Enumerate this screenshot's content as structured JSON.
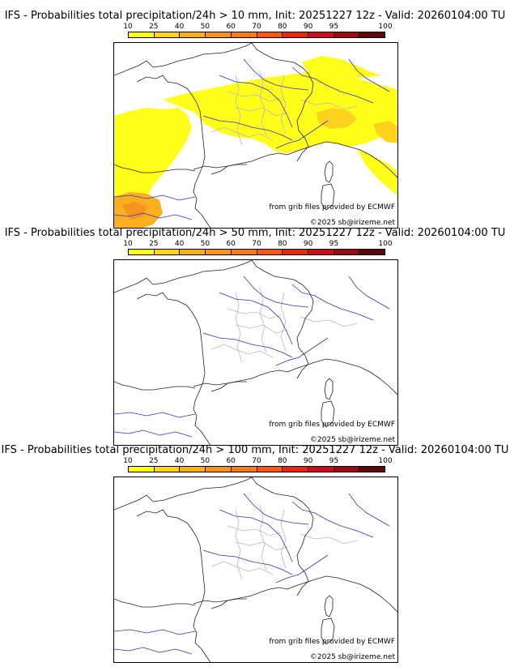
{
  "legend": {
    "ticks": [
      "10",
      "25",
      "40",
      "50",
      "60",
      "70",
      "80",
      "90",
      "95",
      "100"
    ],
    "colors": [
      "#ffff1a",
      "#ffd21e",
      "#fbae1e",
      "#f99320",
      "#f77a1c",
      "#f65a14",
      "#e32a10",
      "#c8101a",
      "#9a0a12",
      "#5e0505"
    ]
  },
  "panels": [
    {
      "title": "IFS - Probabilities total precipitation/24h > 10 mm, Init: 20251227 12z - Valid: 20260104:00 TU",
      "credit": "from grib files provided by ECMWF",
      "copyright": "©2025 sb@irizeme.net",
      "has_precip": true
    },
    {
      "title": "IFS - Probabilities total precipitation/24h > 50 mm, Init: 20251227 12z - Valid: 20260104:00 TU",
      "credit": "from grib files provided by ECMWF",
      "copyright": "©2025 sb@irizeme.net",
      "has_precip": false
    },
    {
      "title": "IFS - Probabilities total precipitation/24h > 100 mm, Init: 20251227 12z - Valid: 20260104:00 TU",
      "credit": "from grib files provided by ECMWF",
      "copyright": "©2025 sb@irizeme.net",
      "has_precip": false
    }
  ]
}
